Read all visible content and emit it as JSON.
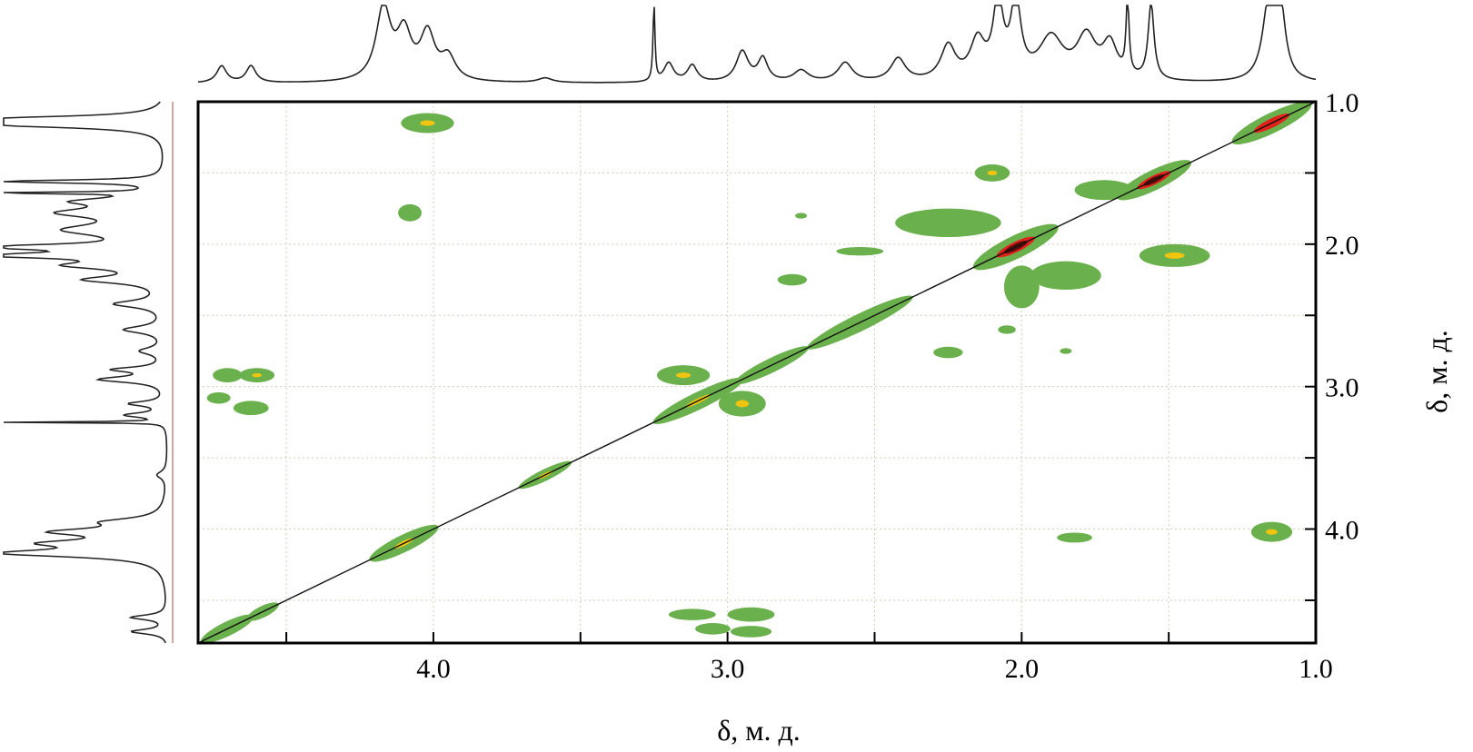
{
  "chart_data": {
    "type": "heatmap",
    "title": "",
    "xlabel": "δ, м. д.",
    "ylabel": "δ, м. д.",
    "xlim": [
      4.8,
      1.0
    ],
    "ylim": [
      1.0,
      4.8
    ],
    "x_ticks": [
      4.5,
      4.0,
      3.5,
      3.0,
      2.5,
      2.0,
      1.5,
      1.0
    ],
    "x_tick_labels": [
      "4.0",
      "3.0",
      "2.0",
      "1.0"
    ],
    "x_tick_label_values": [
      4.0,
      3.0,
      2.0,
      1.0
    ],
    "y_ticks": [
      1.0,
      1.5,
      2.0,
      2.5,
      3.0,
      3.5,
      4.0,
      4.5
    ],
    "y_tick_labels": [
      "1.0",
      "2.0",
      "3.0",
      "4.0"
    ],
    "y_tick_label_values": [
      1.0,
      2.0,
      3.0,
      4.0
    ],
    "grid": true,
    "colors": {
      "low": "#6ab04c",
      "mid": "#f1c40f",
      "high": "#e0221a",
      "peak": "#5a0a0a"
    },
    "diagonal_peaks": [
      {
        "x": 4.7,
        "y": 4.7,
        "rx": 0.1,
        "ry": 0.05,
        "level": 1
      },
      {
        "x": 4.58,
        "y": 4.58,
        "rx": 0.06,
        "ry": 0.04,
        "level": 1
      },
      {
        "x": 4.1,
        "y": 4.1,
        "rx": 0.13,
        "ry": 0.06,
        "level": 2
      },
      {
        "x": 3.62,
        "y": 3.62,
        "rx": 0.1,
        "ry": 0.04,
        "level": 2
      },
      {
        "x": 3.1,
        "y": 3.1,
        "rx": 0.17,
        "ry": 0.06,
        "level": 2
      },
      {
        "x": 2.85,
        "y": 2.85,
        "rx": 0.14,
        "ry": 0.05,
        "level": 1
      },
      {
        "x": 2.55,
        "y": 2.55,
        "rx": 0.2,
        "ry": 0.06,
        "level": 1
      },
      {
        "x": 2.02,
        "y": 2.02,
        "rx": 0.16,
        "ry": 0.08,
        "level": 4
      },
      {
        "x": 1.62,
        "y": 1.62,
        "rx": 0.06,
        "ry": 0.04,
        "level": 3
      },
      {
        "x": 1.55,
        "y": 1.55,
        "rx": 0.14,
        "ry": 0.07,
        "level": 4
      },
      {
        "x": 1.15,
        "y": 1.15,
        "rx": 0.15,
        "ry": 0.07,
        "level": 3
      }
    ],
    "cross_peaks": [
      {
        "x": 4.02,
        "y": 1.15,
        "rx": 0.09,
        "ry": 0.07,
        "level": 2
      },
      {
        "x": 4.08,
        "y": 1.78,
        "rx": 0.04,
        "ry": 0.06,
        "level": 1
      },
      {
        "x": 4.7,
        "y": 2.92,
        "rx": 0.05,
        "ry": 0.05,
        "level": 1
      },
      {
        "x": 4.6,
        "y": 2.92,
        "rx": 0.06,
        "ry": 0.05,
        "level": 2
      },
      {
        "x": 4.73,
        "y": 3.08,
        "rx": 0.04,
        "ry": 0.04,
        "level": 1
      },
      {
        "x": 4.62,
        "y": 3.15,
        "rx": 0.06,
        "ry": 0.05,
        "level": 1
      },
      {
        "x": 3.15,
        "y": 2.92,
        "rx": 0.09,
        "ry": 0.07,
        "level": 2
      },
      {
        "x": 2.95,
        "y": 3.12,
        "rx": 0.08,
        "ry": 0.09,
        "level": 2
      },
      {
        "x": 2.75,
        "y": 1.8,
        "rx": 0.02,
        "ry": 0.02,
        "level": 1
      },
      {
        "x": 2.78,
        "y": 2.25,
        "rx": 0.05,
        "ry": 0.04,
        "level": 1
      },
      {
        "x": 2.25,
        "y": 2.76,
        "rx": 0.05,
        "ry": 0.04,
        "level": 1
      },
      {
        "x": 2.1,
        "y": 1.5,
        "rx": 0.06,
        "ry": 0.06,
        "level": 2
      },
      {
        "x": 2.25,
        "y": 1.85,
        "rx": 0.18,
        "ry": 0.1,
        "level": 1
      },
      {
        "x": 1.85,
        "y": 2.22,
        "rx": 0.12,
        "ry": 0.1,
        "level": 1
      },
      {
        "x": 1.48,
        "y": 2.08,
        "rx": 0.12,
        "ry": 0.08,
        "level": 2
      },
      {
        "x": 2.0,
        "y": 2.3,
        "rx": 0.06,
        "ry": 0.15,
        "level": 1
      },
      {
        "x": 1.72,
        "y": 1.62,
        "rx": 0.1,
        "ry": 0.07,
        "level": 1
      },
      {
        "x": 2.55,
        "y": 2.05,
        "rx": 0.08,
        "ry": 0.03,
        "level": 1
      },
      {
        "x": 1.85,
        "y": 2.75,
        "rx": 0.02,
        "ry": 0.02,
        "level": 1
      },
      {
        "x": 2.05,
        "y": 2.6,
        "rx": 0.03,
        "ry": 0.03,
        "level": 1
      },
      {
        "x": 1.82,
        "y": 4.06,
        "rx": 0.06,
        "ry": 0.035,
        "level": 1
      },
      {
        "x": 1.15,
        "y": 4.02,
        "rx": 0.07,
        "ry": 0.07,
        "level": 2
      },
      {
        "x": 3.12,
        "y": 4.6,
        "rx": 0.08,
        "ry": 0.04,
        "level": 1
      },
      {
        "x": 3.05,
        "y": 4.7,
        "rx": 0.06,
        "ry": 0.04,
        "level": 1
      },
      {
        "x": 2.92,
        "y": 4.6,
        "rx": 0.08,
        "ry": 0.05,
        "level": 1
      },
      {
        "x": 2.92,
        "y": 4.72,
        "rx": 0.07,
        "ry": 0.04,
        "level": 1
      }
    ],
    "projection_peaks": [
      {
        "ppm": 4.72,
        "height": 0.22,
        "width": 0.02
      },
      {
        "ppm": 4.62,
        "height": 0.22,
        "width": 0.02
      },
      {
        "ppm": 4.17,
        "height": 0.95,
        "width": 0.03
      },
      {
        "ppm": 4.1,
        "height": 0.6,
        "width": 0.03
      },
      {
        "ppm": 4.02,
        "height": 0.6,
        "width": 0.03
      },
      {
        "ppm": 3.95,
        "height": 0.3,
        "width": 0.03
      },
      {
        "ppm": 3.62,
        "height": 0.06,
        "width": 0.03
      },
      {
        "ppm": 3.25,
        "height": 1.0,
        "width": 0.004
      },
      {
        "ppm": 3.2,
        "height": 0.25,
        "width": 0.02
      },
      {
        "ppm": 3.12,
        "height": 0.22,
        "width": 0.02
      },
      {
        "ppm": 2.95,
        "height": 0.4,
        "width": 0.025
      },
      {
        "ppm": 2.88,
        "height": 0.3,
        "width": 0.02
      },
      {
        "ppm": 2.75,
        "height": 0.15,
        "width": 0.03
      },
      {
        "ppm": 2.6,
        "height": 0.25,
        "width": 0.03
      },
      {
        "ppm": 2.42,
        "height": 0.3,
        "width": 0.03
      },
      {
        "ppm": 2.25,
        "height": 0.45,
        "width": 0.03
      },
      {
        "ppm": 2.15,
        "height": 0.5,
        "width": 0.03
      },
      {
        "ppm": 2.08,
        "height": 1.0,
        "width": 0.02
      },
      {
        "ppm": 2.02,
        "height": 1.0,
        "width": 0.02
      },
      {
        "ppm": 1.9,
        "height": 0.55,
        "width": 0.05
      },
      {
        "ppm": 1.78,
        "height": 0.55,
        "width": 0.04
      },
      {
        "ppm": 1.7,
        "height": 0.45,
        "width": 0.03
      },
      {
        "ppm": 1.64,
        "height": 1.0,
        "width": 0.006
      },
      {
        "ppm": 1.56,
        "height": 1.0,
        "width": 0.012
      },
      {
        "ppm": 1.16,
        "height": 1.0,
        "width": 0.025
      },
      {
        "ppm": 1.12,
        "height": 0.9,
        "width": 0.02
      }
    ]
  }
}
